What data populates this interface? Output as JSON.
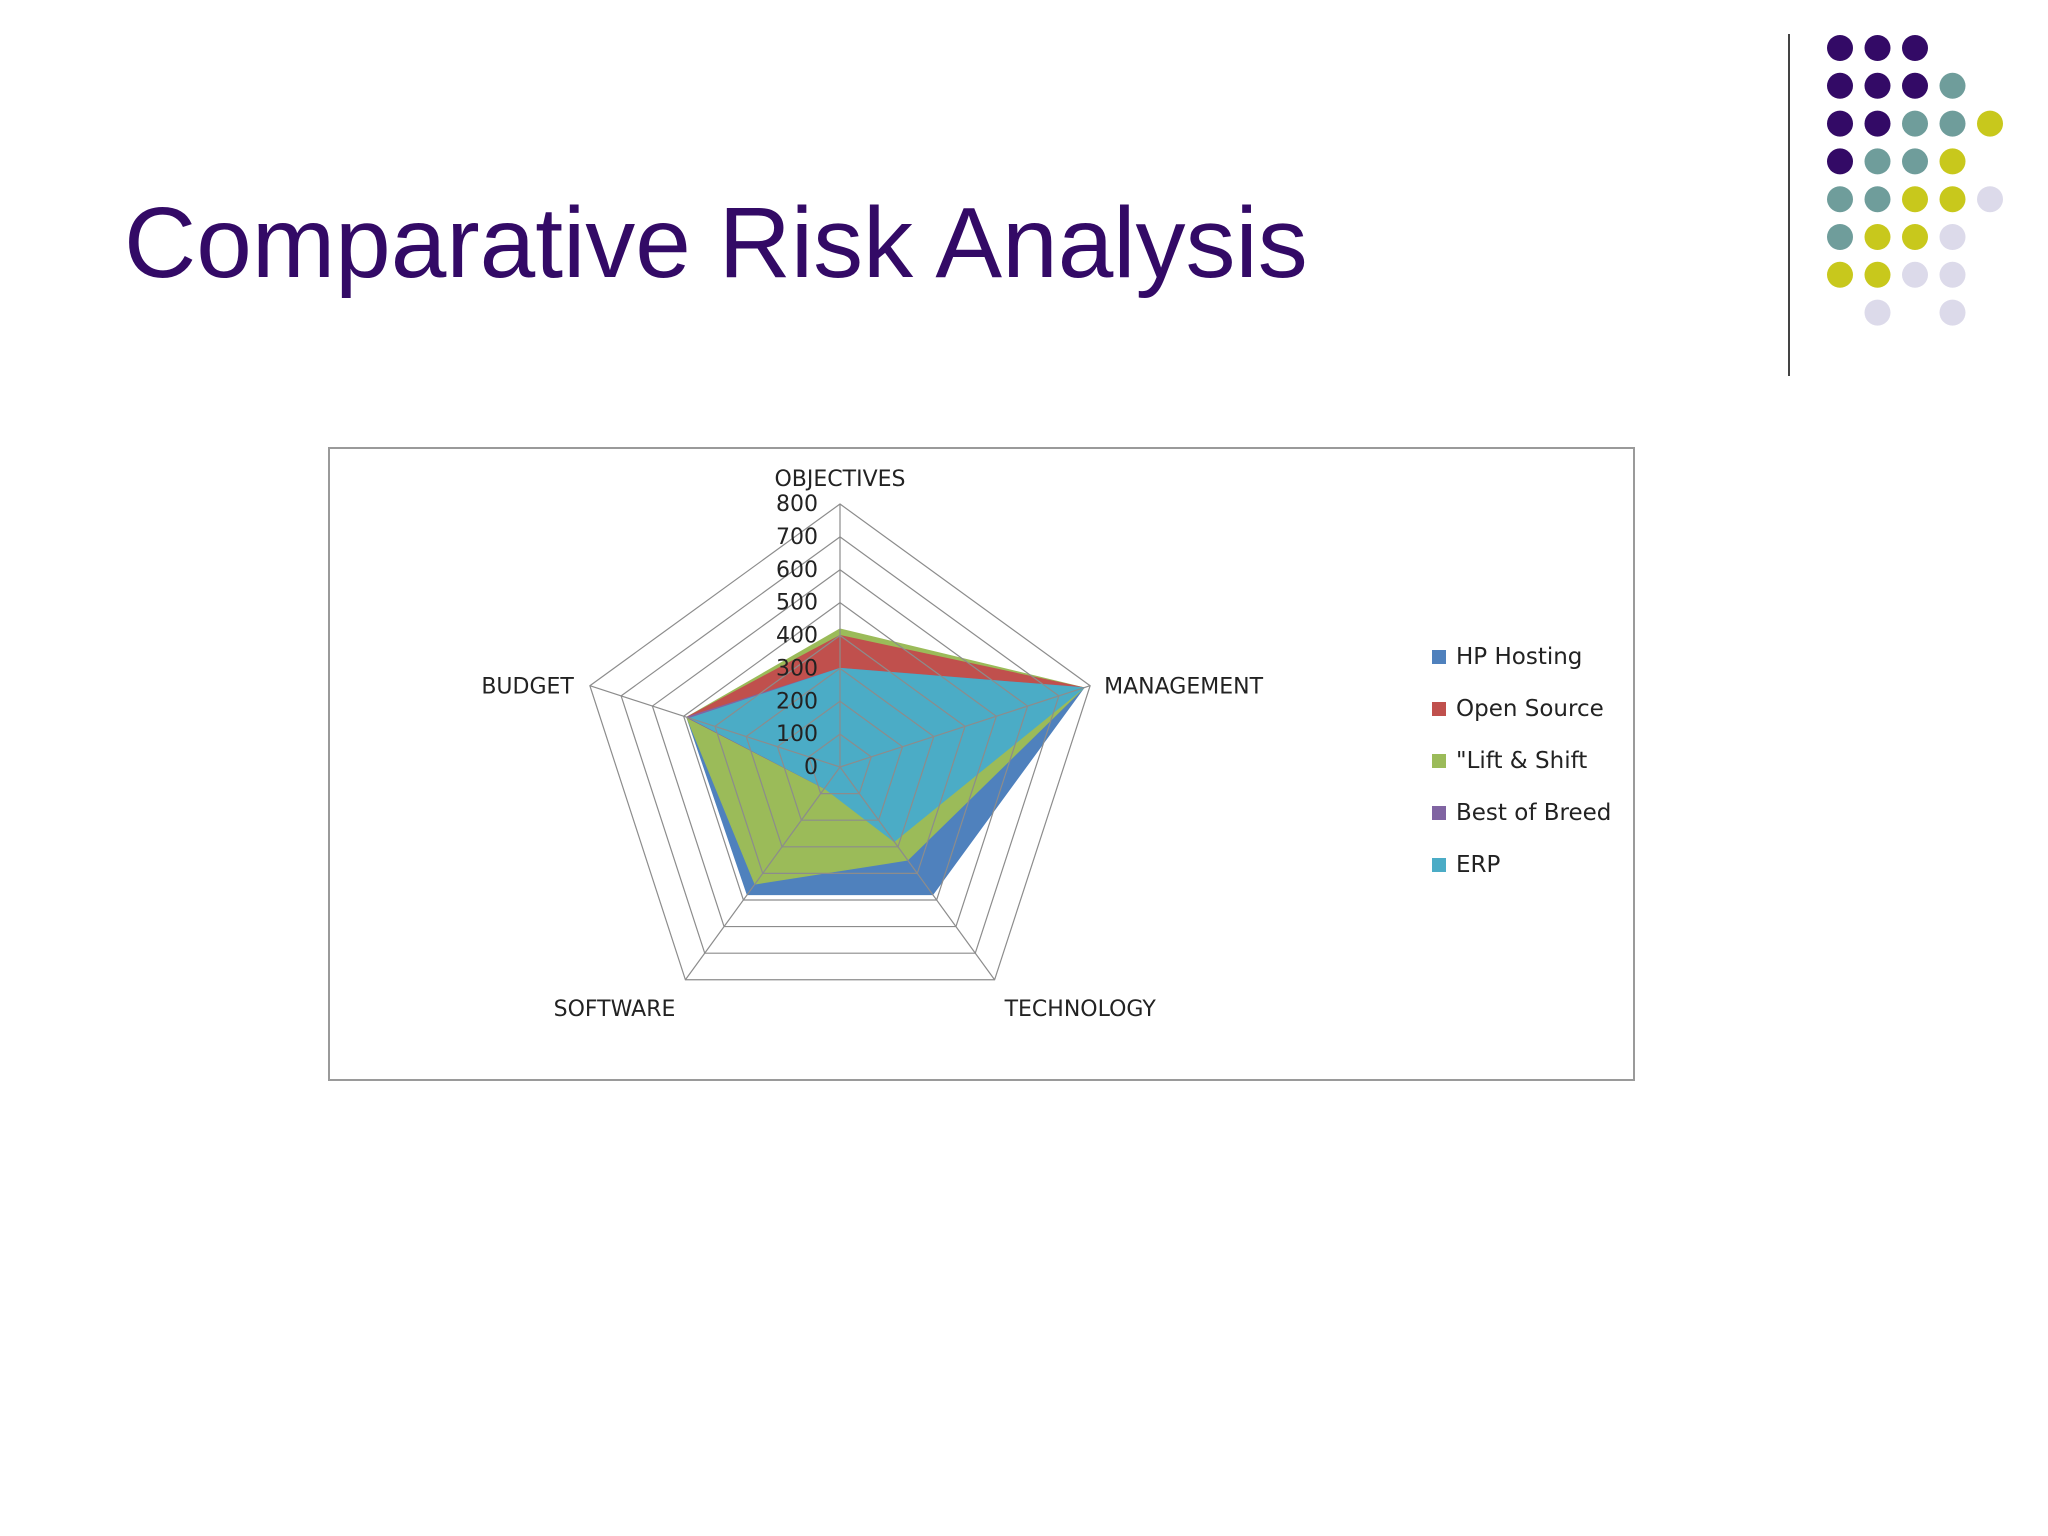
{
  "slide": {
    "title": "Comparative Risk Analysis"
  },
  "decoration": {
    "dot_grid": [
      [
        "P",
        "P",
        "P",
        null,
        null
      ],
      [
        "P",
        "P",
        "P",
        "T",
        null
      ],
      [
        "P",
        "P",
        "T",
        "T",
        "Y"
      ],
      [
        "P",
        "T",
        "T",
        "Y",
        null
      ],
      [
        "T",
        "T",
        "Y",
        "Y",
        "L"
      ],
      [
        "T",
        "Y",
        "Y",
        "L",
        null
      ],
      [
        "Y",
        "Y",
        "L",
        "L",
        null
      ],
      [
        null,
        "L",
        null,
        "L",
        null
      ]
    ],
    "dot_colors": {
      "P": "#330a66",
      "T": "#6f9d9b",
      "Y": "#c8c81c",
      "L": "#dcdaea"
    }
  },
  "chart_data": {
    "type": "radar",
    "title": "",
    "axes": [
      "OBJECTIVES",
      "MANAGEMENT",
      "TECHNOLOGY",
      "SOFTWARE",
      "BUDGET"
    ],
    "ticks": [
      "800",
      "700",
      "600",
      "500",
      "400",
      "300",
      "200",
      "100",
      "0"
    ],
    "rmax": 800,
    "legend_position": "right",
    "series": [
      {
        "name": "HP  Hosting",
        "color": "#4f81bd",
        "values": [
          300,
          780,
          480,
          480,
          490
        ]
      },
      {
        "name": "Open Source",
        "color": "#c0504d",
        "values": [
          400,
          780,
          80,
          80,
          490
        ]
      },
      {
        "name": "\"Lift & Shift",
        "color": "#9bbb59",
        "values": [
          420,
          780,
          350,
          440,
          490
        ]
      },
      {
        "name": "Best of Breed",
        "color": "#8064a2",
        "values": [
          300,
          780,
          180,
          80,
          490
        ]
      },
      {
        "name": "ERP",
        "color": "#4bacc6",
        "values": [
          300,
          780,
          280,
          80,
          480
        ]
      }
    ]
  }
}
